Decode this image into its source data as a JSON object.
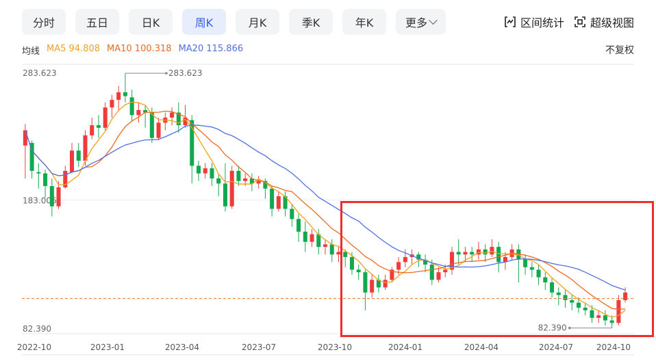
{
  "tabs": [
    {
      "label": "分时",
      "active": false
    },
    {
      "label": "五日",
      "active": false
    },
    {
      "label": "日K",
      "active": false
    },
    {
      "label": "周K",
      "active": true
    },
    {
      "label": "月K",
      "active": false
    },
    {
      "label": "季K",
      "active": false
    },
    {
      "label": "年K",
      "active": false
    },
    {
      "label": "更多",
      "active": false
    }
  ],
  "tools": {
    "range_stats": "区间统计",
    "super_view": "超级视图"
  },
  "ma_legend": {
    "label": "均线",
    "ma5": "MA5 94.808",
    "ma10": "MA10 100.318",
    "ma20": "MA20 115.866"
  },
  "adjust_label": "不复权",
  "colors": {
    "up": "#ee3b3b",
    "down": "#12a84f",
    "ma5": "#f2a21b",
    "ma10": "#ee6a1c",
    "ma20": "#4f6fe6",
    "active_tab": "#3561e0",
    "highlight": "#ef2c2c",
    "ref_line": "#e8742c"
  },
  "chart_data": {
    "type": "candlestick",
    "ylabels": [
      "283.623",
      "183.006",
      "82.390"
    ],
    "xlabels": [
      "2022-10",
      "2023-01",
      "2023-04",
      "2023-07",
      "2023-10",
      "2024-01",
      "2024-04",
      "2024-07",
      "2024-10"
    ],
    "high_annotation": "283.623",
    "low_annotation": "82.390",
    "ylim": [
      82.39,
      283.623
    ],
    "dashed_reference": 105,
    "highlight_region": "2023-10 to 2024-10",
    "candles": [
      [
        226,
        238,
        220,
        243,
        200
      ],
      [
        228,
        206,
        206,
        230,
        200
      ],
      [
        205,
        204,
        195,
        212,
        192
      ],
      [
        204,
        194,
        188,
        207,
        185
      ],
      [
        194,
        178,
        172,
        200,
        170
      ],
      [
        178,
        193,
        178,
        198,
        176
      ],
      [
        193,
        206,
        193,
        210,
        192
      ],
      [
        205,
        222,
        205,
        228,
        204
      ],
      [
        222,
        214,
        212,
        228,
        209
      ],
      [
        214,
        234,
        214,
        238,
        210
      ],
      [
        234,
        242,
        234,
        248,
        231
      ],
      [
        242,
        240,
        234,
        250,
        232
      ],
      [
        240,
        256,
        240,
        260,
        238
      ],
      [
        256,
        262,
        252,
        266,
        248
      ],
      [
        262,
        268,
        256,
        273,
        254
      ],
      [
        268,
        265,
        262,
        283,
        260
      ],
      [
        264,
        250,
        248,
        270,
        245
      ],
      [
        250,
        254,
        248,
        260,
        244
      ],
      [
        254,
        252,
        244,
        258,
        240
      ],
      [
        252,
        232,
        230,
        256,
        228
      ],
      [
        232,
        244,
        232,
        248,
        230
      ],
      [
        244,
        248,
        240,
        252,
        238
      ],
      [
        248,
        252,
        244,
        256,
        242
      ],
      [
        252,
        242,
        238,
        260,
        236
      ],
      [
        242,
        248,
        242,
        258,
        240
      ],
      [
        246,
        210,
        202,
        250,
        196
      ],
      [
        210,
        204,
        200,
        214,
        198
      ],
      [
        204,
        208,
        202,
        212,
        200
      ],
      [
        208,
        200,
        196,
        212,
        194
      ],
      [
        200,
        196,
        188,
        204,
        186
      ],
      [
        196,
        178,
        176,
        212,
        174
      ],
      [
        178,
        206,
        178,
        210,
        176
      ],
      [
        206,
        198,
        196,
        210,
        194
      ],
      [
        198,
        200,
        196,
        204,
        194
      ],
      [
        200,
        196,
        192,
        204,
        190
      ],
      [
        196,
        198,
        194,
        202,
        192
      ],
      [
        198,
        192,
        186,
        200,
        184
      ],
      [
        192,
        176,
        172,
        194,
        170
      ],
      [
        176,
        186,
        176,
        190,
        174
      ],
      [
        186,
        176,
        172,
        190,
        170
      ],
      [
        176,
        168,
        164,
        180,
        162
      ],
      [
        168,
        158,
        154,
        172,
        150
      ],
      [
        158,
        150,
        148,
        166,
        142
      ],
      [
        150,
        156,
        150,
        160,
        146
      ],
      [
        156,
        146,
        144,
        160,
        140
      ],
      [
        146,
        148,
        144,
        152,
        140
      ],
      [
        148,
        140,
        138,
        152,
        134
      ],
      [
        140,
        142,
        136,
        146,
        134
      ],
      [
        142,
        138,
        132,
        144,
        130
      ],
      [
        138,
        128,
        126,
        142,
        124
      ],
      [
        128,
        126,
        122,
        132,
        120
      ],
      [
        126,
        110,
        104,
        128,
        96
      ],
      [
        110,
        120,
        110,
        124,
        106
      ],
      [
        120,
        114,
        112,
        124,
        110
      ],
      [
        114,
        120,
        114,
        124,
        112
      ],
      [
        120,
        128,
        120,
        130,
        118
      ],
      [
        128,
        134,
        126,
        138,
        124
      ],
      [
        134,
        138,
        132,
        144,
        130
      ],
      [
        138,
        140,
        134,
        144,
        132
      ],
      [
        140,
        136,
        132,
        142,
        130
      ],
      [
        136,
        132,
        128,
        140,
        126
      ],
      [
        132,
        120,
        118,
        136,
        116
      ],
      [
        120,
        126,
        120,
        130,
        118
      ],
      [
        126,
        128,
        124,
        132,
        122
      ],
      [
        128,
        142,
        128,
        146,
        124
      ],
      [
        142,
        140,
        134,
        152,
        132
      ],
      [
        140,
        142,
        136,
        146,
        134
      ],
      [
        142,
        140,
        136,
        146,
        134
      ],
      [
        140,
        144,
        138,
        150,
        136
      ],
      [
        144,
        140,
        136,
        148,
        134
      ],
      [
        140,
        146,
        140,
        152,
        138
      ],
      [
        146,
        134,
        130,
        150,
        126
      ],
      [
        134,
        138,
        132,
        142,
        128
      ],
      [
        138,
        144,
        138,
        148,
        136
      ],
      [
        144,
        136,
        122,
        148,
        118
      ],
      [
        136,
        130,
        126,
        140,
        124
      ],
      [
        130,
        128,
        124,
        134,
        122
      ],
      [
        128,
        122,
        118,
        132,
        116
      ],
      [
        122,
        118,
        114,
        126,
        112
      ],
      [
        118,
        110,
        108,
        122,
        106
      ],
      [
        110,
        108,
        104,
        114,
        100
      ],
      [
        108,
        104,
        100,
        112,
        98
      ],
      [
        104,
        102,
        98,
        108,
        96
      ],
      [
        102,
        98,
        96,
        106,
        94
      ],
      [
        98,
        96,
        94,
        102,
        92
      ],
      [
        96,
        90,
        88,
        100,
        86
      ],
      [
        90,
        92,
        88,
        96,
        86
      ],
      [
        92,
        88,
        86,
        96,
        84
      ],
      [
        88,
        86,
        84,
        92,
        82
      ],
      [
        86,
        104,
        86,
        108,
        84
      ],
      [
        104,
        110,
        104,
        114,
        102
      ]
    ],
    "series": [
      {
        "name": "MA5"
      },
      {
        "name": "MA10"
      },
      {
        "name": "MA20"
      }
    ]
  }
}
